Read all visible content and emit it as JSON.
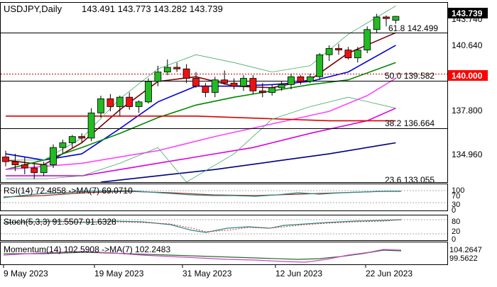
{
  "main": {
    "symbol": "USDJPY,Daily",
    "ohlc": "143.491 143.773 143.282 143.739",
    "price_ticks": [
      "143.740",
      "140.640",
      "137.800",
      "134.960"
    ],
    "current_price": "143.739",
    "level_140": "140.000",
    "fib": [
      {
        "label": "61.8 142.499",
        "value": 142.499
      },
      {
        "label": "50.0 139.582",
        "value": 139.582
      },
      {
        "label": "38.2 136.664",
        "value": 136.664
      },
      {
        "label": "23.6 133.055",
        "value": 133.055
      }
    ]
  },
  "rsi": {
    "label": "RSI(14) 72.4858 ->MA(7) 69.0710",
    "ticks": [
      "100",
      "70",
      "30",
      "0"
    ]
  },
  "stoch": {
    "label": "Stoch(5,3,3) 91.5507 91.6328",
    "ticks": [
      "80",
      "20",
      "0"
    ]
  },
  "momentum": {
    "label": "Momentum(14) 102.5908 ->MA(7) 102.2483",
    "ticks": [
      "104.2647",
      "99.5622"
    ]
  },
  "dates": [
    "9 May 2023",
    "19 May 2023",
    "31 May 2023",
    "12 Jun 2023",
    "22 Jun 2023"
  ],
  "colors": {
    "bull": "#22bb22",
    "bear": "#ee1111",
    "price_label_bg": "#000000",
    "level_label_bg": "#ff0000"
  },
  "chart_data": {
    "type": "candlestick",
    "ylim": [
      133.2,
      144.6
    ],
    "candles": [
      {
        "o": 134.8,
        "h": 135.2,
        "l": 134.2,
        "c": 134.5
      },
      {
        "o": 134.5,
        "h": 135.0,
        "l": 133.9,
        "c": 134.3
      },
      {
        "o": 134.3,
        "h": 134.8,
        "l": 133.7,
        "c": 134.1
      },
      {
        "o": 134.1,
        "h": 134.4,
        "l": 133.4,
        "c": 133.8
      },
      {
        "o": 133.8,
        "h": 134.5,
        "l": 133.6,
        "c": 134.3
      },
      {
        "o": 134.3,
        "h": 135.6,
        "l": 134.1,
        "c": 135.4
      },
      {
        "o": 135.4,
        "h": 135.9,
        "l": 135.0,
        "c": 135.7
      },
      {
        "o": 135.7,
        "h": 136.2,
        "l": 135.4,
        "c": 136.1
      },
      {
        "o": 136.1,
        "h": 136.3,
        "l": 135.7,
        "c": 136.0
      },
      {
        "o": 136.0,
        "h": 137.9,
        "l": 135.8,
        "c": 137.6
      },
      {
        "o": 137.6,
        "h": 138.7,
        "l": 137.3,
        "c": 138.5
      },
      {
        "o": 138.5,
        "h": 138.8,
        "l": 137.7,
        "c": 138.0
      },
      {
        "o": 138.0,
        "h": 138.7,
        "l": 137.4,
        "c": 138.6
      },
      {
        "o": 138.6,
        "h": 138.9,
        "l": 137.8,
        "c": 138.0
      },
      {
        "o": 138.0,
        "h": 138.4,
        "l": 137.6,
        "c": 138.3
      },
      {
        "o": 138.3,
        "h": 139.8,
        "l": 138.2,
        "c": 139.6
      },
      {
        "o": 139.6,
        "h": 140.6,
        "l": 139.3,
        "c": 140.2
      },
      {
        "o": 140.2,
        "h": 141.0,
        "l": 140.0,
        "c": 140.5
      },
      {
        "o": 140.5,
        "h": 140.8,
        "l": 140.2,
        "c": 140.4
      },
      {
        "o": 140.4,
        "h": 140.7,
        "l": 139.5,
        "c": 139.8
      },
      {
        "o": 139.8,
        "h": 140.2,
        "l": 139.2,
        "c": 139.3
      },
      {
        "o": 139.3,
        "h": 139.5,
        "l": 138.6,
        "c": 138.9
      },
      {
        "o": 138.9,
        "h": 139.9,
        "l": 138.6,
        "c": 139.7
      },
      {
        "o": 139.7,
        "h": 140.3,
        "l": 139.4,
        "c": 139.5
      },
      {
        "o": 139.5,
        "h": 139.8,
        "l": 139.1,
        "c": 139.3
      },
      {
        "o": 139.3,
        "h": 140.0,
        "l": 139.0,
        "c": 139.8
      },
      {
        "o": 139.8,
        "h": 140.0,
        "l": 138.8,
        "c": 139.0
      },
      {
        "o": 139.0,
        "h": 139.5,
        "l": 138.6,
        "c": 138.9
      },
      {
        "o": 138.9,
        "h": 139.4,
        "l": 138.7,
        "c": 139.2
      },
      {
        "o": 139.2,
        "h": 139.6,
        "l": 139.0,
        "c": 139.4
      },
      {
        "o": 139.4,
        "h": 140.1,
        "l": 139.1,
        "c": 139.9
      },
      {
        "o": 139.9,
        "h": 140.0,
        "l": 139.4,
        "c": 139.6
      },
      {
        "o": 139.6,
        "h": 140.1,
        "l": 139.5,
        "c": 139.9
      },
      {
        "o": 139.9,
        "h": 141.4,
        "l": 139.7,
        "c": 141.3
      },
      {
        "o": 141.3,
        "h": 141.9,
        "l": 140.9,
        "c": 141.7
      },
      {
        "o": 141.7,
        "h": 142.0,
        "l": 141.3,
        "c": 141.6
      },
      {
        "o": 141.6,
        "h": 141.8,
        "l": 141.0,
        "c": 141.1
      },
      {
        "o": 141.1,
        "h": 141.8,
        "l": 140.8,
        "c": 141.6
      },
      {
        "o": 141.6,
        "h": 143.1,
        "l": 141.4,
        "c": 142.9
      },
      {
        "o": 142.9,
        "h": 143.9,
        "l": 142.7,
        "c": 143.7
      },
      {
        "o": 143.7,
        "h": 143.8,
        "l": 143.1,
        "c": 143.6
      },
      {
        "o": 143.49,
        "h": 143.77,
        "l": 143.28,
        "c": 143.74
      }
    ],
    "mas": [
      {
        "color": "#7a0000",
        "values": [
          [
            0,
            134.6
          ],
          [
            4,
            134.3
          ],
          [
            8,
            135.7
          ],
          [
            12,
            137.8
          ],
          [
            16,
            139.6
          ],
          [
            20,
            139.9
          ],
          [
            24,
            139.3
          ],
          [
            28,
            139.2
          ],
          [
            32,
            139.7
          ],
          [
            36,
            141.4
          ],
          [
            41,
            142.7
          ]
        ]
      },
      {
        "color": "#0000dd",
        "values": [
          [
            0,
            135.0
          ],
          [
            4,
            134.6
          ],
          [
            8,
            135.0
          ],
          [
            12,
            136.6
          ],
          [
            16,
            138.3
          ],
          [
            20,
            139.3
          ],
          [
            24,
            139.3
          ],
          [
            28,
            139.4
          ],
          [
            32,
            139.6
          ],
          [
            36,
            140.2
          ],
          [
            41,
            141.9
          ]
        ]
      },
      {
        "color": "#008800",
        "values": [
          [
            0,
            134.0
          ],
          [
            4,
            134.6
          ],
          [
            8,
            135.4
          ],
          [
            12,
            136.3
          ],
          [
            16,
            137.3
          ],
          [
            20,
            138.1
          ],
          [
            24,
            138.6
          ],
          [
            28,
            139.0
          ],
          [
            32,
            139.4
          ],
          [
            36,
            139.7
          ],
          [
            41,
            140.8
          ]
        ]
      },
      {
        "color": "#ff44ff",
        "values": [
          [
            0,
            134.0
          ],
          [
            8,
            134.4
          ],
          [
            16,
            135.2
          ],
          [
            22,
            136.1
          ],
          [
            28,
            136.9
          ],
          [
            34,
            137.7
          ],
          [
            38,
            138.7
          ],
          [
            41,
            139.8
          ]
        ]
      },
      {
        "color": "#dd00dd",
        "values": [
          [
            0,
            133.6
          ],
          [
            8,
            133.6
          ],
          [
            14,
            134.2
          ],
          [
            20,
            134.8
          ],
          [
            26,
            135.4
          ],
          [
            32,
            136.3
          ],
          [
            38,
            137.1
          ],
          [
            41,
            137.9
          ]
        ]
      },
      {
        "color": "#000080",
        "values": [
          [
            10,
            133.2
          ],
          [
            16,
            133.6
          ],
          [
            22,
            134.0
          ],
          [
            28,
            134.5
          ],
          [
            34,
            135.0
          ],
          [
            40,
            135.6
          ],
          [
            41,
            135.7
          ]
        ]
      },
      {
        "color": "#dd0000",
        "values": [
          [
            0,
            137.4
          ],
          [
            20,
            137.4
          ],
          [
            34,
            137.1
          ],
          [
            41,
            137.1
          ]
        ]
      },
      {
        "color": "#44aa66",
        "values": [
          [
            0,
            134.6
          ],
          [
            4,
            134.6
          ],
          [
            8,
            136.0
          ],
          [
            12,
            138.5
          ],
          [
            16,
            140.4
          ],
          [
            20,
            141.3
          ],
          [
            24,
            140.8
          ],
          [
            28,
            140.2
          ],
          [
            32,
            140.6
          ],
          [
            36,
            142.6
          ],
          [
            41,
            144.4
          ]
        ]
      },
      {
        "color": "#44aa66",
        "values": [
          [
            0,
            133.4
          ],
          [
            4,
            133.4
          ],
          [
            8,
            133.6
          ],
          [
            12,
            134.4
          ],
          [
            16,
            135.4
          ],
          [
            19,
            133.2
          ],
          [
            24,
            135.0
          ],
          [
            28,
            137.2
          ],
          [
            32,
            138.0
          ],
          [
            36,
            138.6
          ],
          [
            41,
            137.9
          ]
        ]
      }
    ]
  }
}
